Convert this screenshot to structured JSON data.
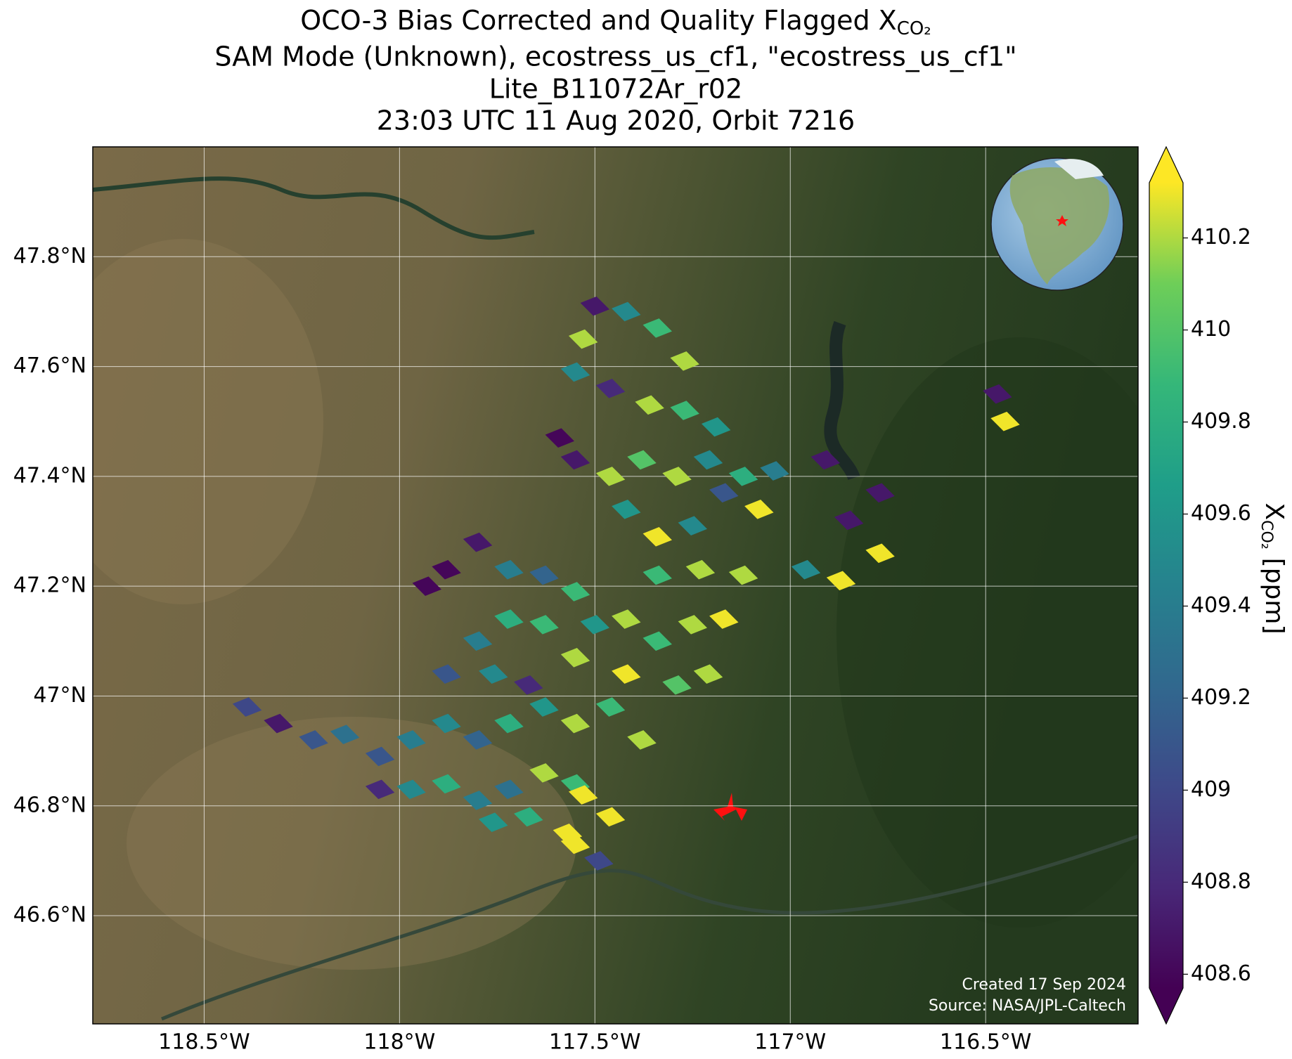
{
  "chart_data": {
    "type": "map",
    "title_line1": "OCO-3 Bias Corrected and Quality Flagged X",
    "title_line1_subscript": "CO₂",
    "title_line2": "SAM Mode (Unknown), ecostress_us_cf1, \"ecostress_us_cf1\"",
    "title_line3": "Lite_B11072Ar_r02",
    "title_line4": "23:03 UTC 11 Aug 2020, Orbit 7216",
    "xlim": [
      -118.785,
      -116.11
    ],
    "ylim": [
      46.403,
      48.0
    ],
    "xticks": [
      {
        "value": -118.5,
        "label": "118.5°W"
      },
      {
        "value": -118,
        "label": "118°W"
      },
      {
        "value": -117.5,
        "label": "117.5°W"
      },
      {
        "value": -117,
        "label": "117°W"
      },
      {
        "value": -116.5,
        "label": "116.5°W"
      }
    ],
    "yticks": [
      {
        "value": 46.6,
        "label": "46.6°N"
      },
      {
        "value": 46.8,
        "label": "46.8°N"
      },
      {
        "value": 47,
        "label": "47°N"
      },
      {
        "value": 47.2,
        "label": "47.2°N"
      },
      {
        "value": 47.4,
        "label": "47.4°N"
      },
      {
        "value": 47.6,
        "label": "47.6°N"
      },
      {
        "value": 47.8,
        "label": "47.8°N"
      }
    ],
    "grid": true,
    "colormap": "viridis",
    "clim": [
      408.57,
      410.32
    ],
    "cticks": [
      408.6,
      408.8,
      409.0,
      409.2,
      409.4,
      409.6,
      409.8,
      410.0,
      410.2
    ],
    "colorbar_symbol": "X",
    "colorbar_subscript": "CO₂",
    "colorbar_unit": "[ppm]",
    "footer_line1": "Created 17 Sep 2024",
    "footer_line2": "Source: NASA/JPL-Caltech",
    "x": [
      -117.5,
      -117.42,
      -117.34,
      -117.27,
      -117.55,
      -117.46,
      -117.36,
      -117.27,
      -117.19,
      -117.59,
      -117.55,
      -117.46,
      -117.38,
      -117.29,
      -117.21,
      -117.12,
      -117.04,
      -117.42,
      -117.34,
      -117.25,
      -117.17,
      -117.34,
      -117.23,
      -117.12,
      -117.08,
      -116.91,
      -116.77,
      -116.85,
      -116.77,
      -116.87,
      -116.96,
      -116.47,
      -116.45,
      -117.53,
      -117.88,
      -117.8,
      -117.93,
      -117.72,
      -117.63,
      -117.55,
      -117.8,
      -117.72,
      -117.63,
      -117.5,
      -117.42,
      -117.34,
      -117.25,
      -117.17,
      -117.88,
      -117.76,
      -117.67,
      -117.55,
      -117.42,
      -117.29,
      -117.21,
      -118.39,
      -118.31,
      -118.22,
      -118.14,
      -118.05,
      -117.97,
      -117.88,
      -117.8,
      -117.72,
      -117.63,
      -117.55,
      -117.46,
      -117.38,
      -118.05,
      -117.97,
      -117.88,
      -117.8,
      -117.72,
      -117.63,
      -117.55,
      -117.76,
      -117.67,
      -117.57,
      -117.46,
      -117.55,
      -117.49,
      -117.53
    ],
    "y": [
      47.71,
      47.7,
      47.67,
      47.61,
      47.59,
      47.56,
      47.53,
      47.52,
      47.49,
      47.47,
      47.43,
      47.4,
      47.43,
      47.4,
      47.43,
      47.4,
      47.41,
      47.34,
      47.29,
      47.31,
      47.37,
      47.22,
      47.23,
      47.22,
      47.34,
      47.43,
      47.37,
      47.32,
      47.26,
      47.21,
      47.23,
      47.55,
      47.5,
      47.65,
      47.23,
      47.28,
      47.2,
      47.23,
      47.22,
      47.19,
      47.1,
      47.14,
      47.13,
      47.13,
      47.14,
      47.1,
      47.13,
      47.14,
      47.04,
      47.04,
      47.02,
      47.07,
      47.04,
      47.02,
      47.04,
      46.98,
      46.95,
      46.92,
      46.93,
      46.89,
      46.92,
      46.95,
      46.92,
      46.95,
      46.98,
      46.95,
      46.98,
      46.92,
      46.83,
      46.83,
      46.84,
      46.81,
      46.83,
      46.86,
      46.84,
      46.77,
      46.78,
      46.75,
      46.78,
      46.73,
      46.7,
      46.82
    ],
    "values": [
      408.7,
      409.5,
      409.9,
      410.2,
      409.5,
      408.8,
      410.2,
      409.9,
      409.6,
      408.6,
      408.7,
      410.2,
      410.0,
      410.2,
      409.5,
      409.8,
      409.4,
      409.6,
      410.3,
      409.5,
      409.1,
      409.9,
      410.2,
      410.2,
      410.3,
      408.7,
      408.7,
      408.7,
      410.3,
      410.3,
      409.5,
      408.7,
      410.3,
      410.2,
      408.6,
      408.7,
      408.6,
      409.4,
      409.2,
      409.9,
      409.4,
      409.8,
      409.9,
      409.6,
      410.2,
      409.9,
      410.2,
      410.3,
      409.1,
      409.5,
      408.8,
      410.2,
      410.3,
      410.0,
      410.2,
      409.0,
      408.7,
      409.1,
      409.3,
      409.1,
      409.4,
      409.5,
      409.2,
      409.8,
      409.6,
      410.2,
      409.9,
      410.2,
      408.8,
      409.5,
      409.8,
      409.4,
      409.3,
      410.2,
      409.9,
      409.6,
      409.8,
      410.3,
      410.3,
      410.3,
      409.0,
      410.3
    ]
  }
}
